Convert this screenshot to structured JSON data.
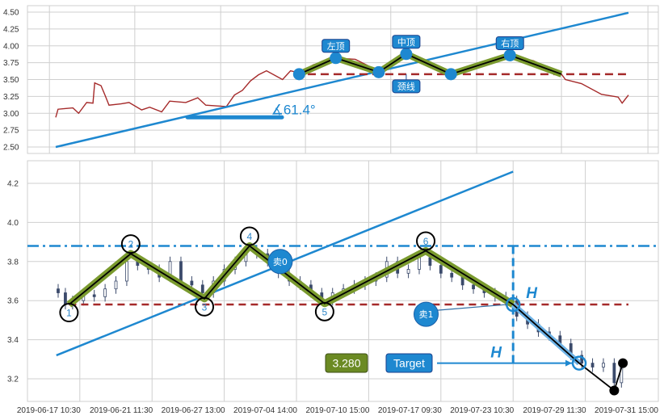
{
  "chart_data": [
    {
      "type": "line",
      "title": "",
      "ylim": [
        2.45,
        4.6
      ],
      "yticks": [
        "2.50",
        "2.75",
        "3.00",
        "3.25",
        "3.50",
        "3.75",
        "4.00",
        "4.25",
        "4.50"
      ],
      "grid": true,
      "colors": {
        "price": "#a52a2a",
        "trend": "#1e88d0",
        "pattern": "#7a9a2e",
        "neckline": "#a52a2a",
        "label_bg": "#1e88d0"
      },
      "series": [
        {
          "x": [
            0,
            0.4,
            1.6,
            3,
            4,
            5.4,
            6.5,
            6.8,
            7.9,
            8.6,
            9.3,
            11.4,
            12.8,
            15,
            16.4,
            18.5,
            19.9,
            22.7,
            24.8,
            26.2,
            29.8,
            31.2,
            32.6,
            34,
            35.4,
            36.8,
            39.6,
            41,
            42.5,
            45,
            48.8,
            52.3,
            56.3,
            60.1,
            61.5,
            65,
            69,
            73.5,
            79.1,
            83.4,
            88.3,
            89,
            91.8,
            95.3,
            98.2,
            98.9,
            100
          ],
          "y": [
            2.94,
            3.06,
            3.07,
            3.08,
            3.0,
            3.16,
            3.15,
            3.45,
            3.41,
            3.27,
            3.12,
            3.14,
            3.16,
            3.05,
            3.09,
            3.02,
            3.18,
            3.16,
            3.23,
            3.12,
            3.1,
            3.27,
            3.34,
            3.48,
            3.57,
            3.63,
            3.5,
            3.63,
            3.6,
            3.72,
            3.82,
            3.8,
            3.63,
            3.86,
            3.86,
            3.76,
            3.58,
            3.72,
            3.86,
            3.78,
            3.58,
            3.5,
            3.44,
            3.28,
            3.24,
            3.15,
            3.27
          ]
        }
      ],
      "pattern": {
        "x": [
          42.5,
          48.9,
          56.4,
          61.2,
          69,
          79.3,
          88.3
        ],
        "y": [
          3.58,
          3.82,
          3.61,
          3.88,
          3.58,
          3.86,
          3.58
        ]
      },
      "labels": [
        {
          "text": "左顶",
          "x": 48.9,
          "y": 3.82
        },
        {
          "text": "中顶",
          "x": 61.2,
          "y": 3.88
        },
        {
          "text": "右顶",
          "x": 79.3,
          "y": 3.86
        },
        {
          "text": "颈线",
          "x": 61.2,
          "y": 3.58
        }
      ],
      "neckline": 3.58,
      "trendline": {
        "x": [
          0,
          100
        ],
        "y": [
          2.5,
          4.49
        ]
      },
      "angle_baseline": {
        "x": [
          23,
          39.5
        ],
        "y": 2.94
      },
      "angle_label": "∡61.4°"
    },
    {
      "type": "candlestick",
      "title": "",
      "ylim": [
        3.09,
        4.3
      ],
      "yticks": [
        "3.2",
        "3.4",
        "3.6",
        "3.8",
        "4.0",
        "4.2"
      ],
      "xticks": [
        {
          "i": 20,
          "label": "2019-06-17 10:30"
        },
        {
          "i": 40,
          "label": "2019-06-21 11:30"
        },
        {
          "i": 60,
          "label": "2019-06-27 13:00"
        },
        {
          "i": 80,
          "label": "2019-07-04 14:00"
        },
        {
          "i": 100,
          "label": "2019-07-10 15:00"
        },
        {
          "i": 120,
          "label": "2019-07-17 09:30"
        },
        {
          "i": 140,
          "label": "2019-07-23 10:30"
        },
        {
          "i": 160,
          "label": "2019-07-29 11:30"
        },
        {
          "i": 180,
          "label": "2019-07-31 15:00"
        }
      ],
      "grid": true,
      "colors": {
        "candle": "#3b4a6b",
        "pattern": "#7a9a2e",
        "neckline": "#a52a2a",
        "resistance": "#1e88d0",
        "trend": "#1e88d0",
        "value_box": "#6b8a23",
        "target_box": "#1e88d0"
      },
      "closes": {
        "x": [
          14,
          16,
          18,
          21,
          24,
          27,
          30,
          33,
          36,
          39,
          42,
          45,
          48,
          51,
          54,
          57,
          60,
          63,
          66,
          69,
          72,
          75,
          78,
          81,
          84,
          87,
          90,
          93,
          96,
          99,
          102,
          105,
          108,
          111,
          114,
          117,
          120,
          123,
          126,
          129,
          132,
          135,
          138,
          141,
          144,
          147,
          150,
          153,
          156,
          159,
          162,
          165,
          168,
          170
        ],
        "y": [
          3.64,
          3.58,
          3.6,
          3.63,
          3.62,
          3.66,
          3.7,
          3.8,
          3.78,
          3.76,
          3.72,
          3.8,
          3.7,
          3.68,
          3.64,
          3.7,
          3.76,
          3.8,
          3.86,
          3.84,
          3.8,
          3.74,
          3.7,
          3.68,
          3.64,
          3.6,
          3.64,
          3.66,
          3.68,
          3.7,
          3.72,
          3.8,
          3.74,
          3.76,
          3.82,
          3.78,
          3.74,
          3.72,
          3.68,
          3.66,
          3.64,
          3.62,
          3.6,
          3.52,
          3.48,
          3.44,
          3.42,
          3.38,
          3.32,
          3.28,
          3.26,
          3.28,
          3.18,
          3.26
        ]
      },
      "pivots": [
        {
          "label": "1",
          "x": 17,
          "y": 3.58
        },
        {
          "label": "2",
          "x": 34.1,
          "y": 3.84
        },
        {
          "label": "3",
          "x": 54.5,
          "y": 3.61
        },
        {
          "label": "4",
          "x": 67,
          "y": 3.88
        },
        {
          "label": "5",
          "x": 87.8,
          "y": 3.585
        },
        {
          "label": "6",
          "x": 115.8,
          "y": 3.855
        }
      ],
      "breakout": {
        "x": 140,
        "y": 3.58
      },
      "target": {
        "x": 158.3,
        "y": 3.28
      },
      "low": {
        "x": 168,
        "y": 3.14
      },
      "last": {
        "x": 170.4,
        "y": 3.28
      },
      "neckline": 3.58,
      "resistance": 3.88,
      "trendline": {
        "x": [
          13.5,
          140
        ],
        "y": [
          3.32,
          4.26
        ]
      },
      "signals": [
        {
          "text": "卖0",
          "x": 75.5,
          "y": 3.8
        },
        {
          "text": "卖1",
          "x": 115.9,
          "y": 3.53
        }
      ],
      "height_label": "H",
      "target_value": "3.280",
      "target_label": "Target"
    }
  ]
}
